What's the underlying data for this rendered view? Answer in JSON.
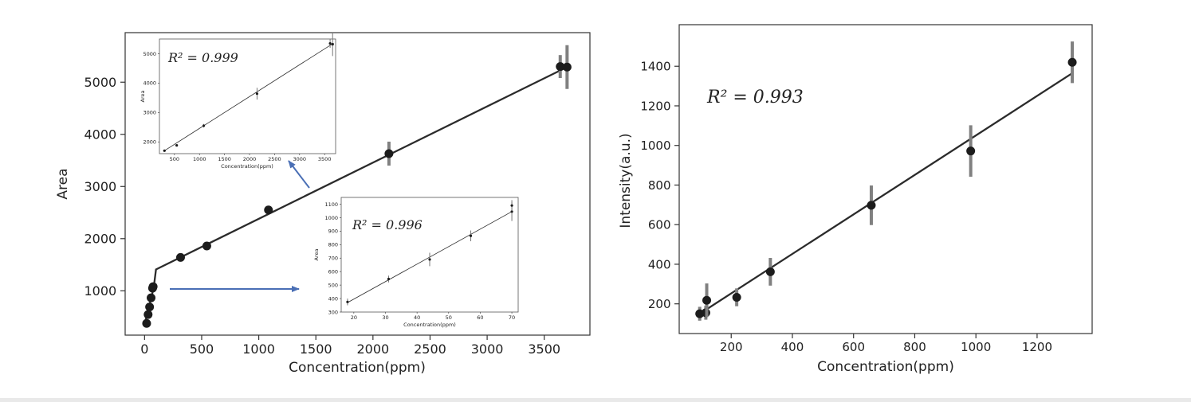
{
  "chart_data": [
    {
      "id": "area",
      "type": "scatter",
      "xlabel": "Concentration(ppm)",
      "ylabel": "Area",
      "xlim": [
        -170,
        3900
      ],
      "ylim": [
        150,
        5950
      ],
      "xticks": [
        0,
        500,
        1000,
        1500,
        2000,
        2500,
        3000,
        3500
      ],
      "yticks": [
        1000,
        2000,
        3000,
        4000,
        5000
      ],
      "grid": false,
      "annotations": [],
      "series": [
        {
          "points": [
            {
              "x": 18,
              "y": 375,
              "err": 25
            },
            {
              "x": 31,
              "y": 545,
              "err": 25
            },
            {
              "x": 44,
              "y": 690,
              "err": 35
            },
            {
              "x": 57,
              "y": 865,
              "err": 30
            },
            {
              "x": 70,
              "y": 1050,
              "err": 60
            },
            {
              "x": 75,
              "y": 1080,
              "err": 30
            },
            {
              "x": 315,
              "y": 1640,
              "err": 40
            },
            {
              "x": 545,
              "y": 1860,
              "err": 30
            },
            {
              "x": 1085,
              "y": 2550,
              "err": 80
            },
            {
              "x": 2140,
              "y": 3630,
              "err": 230
            },
            {
              "x": 3640,
              "y": 5300,
              "err": 220
            },
            {
              "x": 3700,
              "y": 5290,
              "err": 420
            }
          ],
          "fit": [
            {
              "x": 0,
              "y": 350
            },
            {
              "x": 80,
              "y": 1060
            },
            {
              "x": 100,
              "y": 1410
            },
            {
              "x": 3700,
              "y": 5290
            }
          ]
        }
      ],
      "insets": [
        {
          "id": "inset-high",
          "r2_label": "R² = 0.999",
          "xlabel": "Concentration(ppm)",
          "ylabel": "Area",
          "xlim": [
            200,
            3720
          ],
          "ylim": [
            1600,
            5500
          ],
          "xticks": [
            500,
            1000,
            1500,
            2000,
            2500,
            3000,
            3500
          ],
          "yticks": [
            2000,
            3000,
            4000,
            5000
          ],
          "points": [
            {
              "x": 300,
              "y": 1700,
              "err": 30
            },
            {
              "x": 545,
              "y": 1880,
              "err": 30
            },
            {
              "x": 1085,
              "y": 2550,
              "err": 60
            },
            {
              "x": 2150,
              "y": 3640,
              "err": 200
            },
            {
              "x": 3610,
              "y": 5350,
              "err": 150
            },
            {
              "x": 3660,
              "y": 5320,
              "err": 400
            }
          ],
          "fit": [
            {
              "x": 300,
              "y": 1700
            },
            {
              "x": 3680,
              "y": 5360
            }
          ]
        },
        {
          "id": "inset-low",
          "r2_label": "R² = 0.996",
          "xlabel": "Concentration(ppm)",
          "ylabel": "Area",
          "xlim": [
            16,
            72
          ],
          "ylim": [
            300,
            1150
          ],
          "xticks": [
            20,
            30,
            40,
            50,
            60,
            70
          ],
          "yticks": [
            300,
            400,
            500,
            600,
            700,
            800,
            900,
            1000,
            1100
          ],
          "points": [
            {
              "x": 18,
              "y": 375,
              "err": 25
            },
            {
              "x": 31,
              "y": 545,
              "err": 25
            },
            {
              "x": 44,
              "y": 690,
              "err": 50
            },
            {
              "x": 57,
              "y": 865,
              "err": 40
            },
            {
              "x": 70,
              "y": 1045,
              "err": 70
            },
            {
              "x": 70,
              "y": 1090,
              "err": 40
            }
          ],
          "fit": [
            {
              "x": 18,
              "y": 370
            },
            {
              "x": 70,
              "y": 1045
            }
          ]
        }
      ]
    },
    {
      "id": "intensity",
      "type": "scatter",
      "xlabel": "Concentration(ppm)",
      "ylabel": "Intensity(a.u.)",
      "r2_label": "R² = 0.993",
      "xlim": [
        30,
        1380
      ],
      "ylim": [
        50,
        1610
      ],
      "xticks": [
        200,
        400,
        600,
        800,
        1000,
        1200
      ],
      "yticks": [
        200,
        400,
        600,
        800,
        1000,
        1200,
        1400
      ],
      "grid": false,
      "series": [
        {
          "points": [
            {
              "x": 97,
              "y": 150,
              "err": 35
            },
            {
              "x": 117,
              "y": 155,
              "err": 35
            },
            {
              "x": 120,
              "y": 218,
              "err": 85
            },
            {
              "x": 218,
              "y": 233,
              "err": 45
            },
            {
              "x": 328,
              "y": 362,
              "err": 70
            },
            {
              "x": 658,
              "y": 698,
              "err": 100
            },
            {
              "x": 983,
              "y": 972,
              "err": 130
            },
            {
              "x": 1315,
              "y": 1420,
              "err": 105
            }
          ],
          "fit": [
            {
              "x": 97,
              "y": 150
            },
            {
              "x": 1315,
              "y": 1365
            }
          ]
        }
      ]
    }
  ]
}
